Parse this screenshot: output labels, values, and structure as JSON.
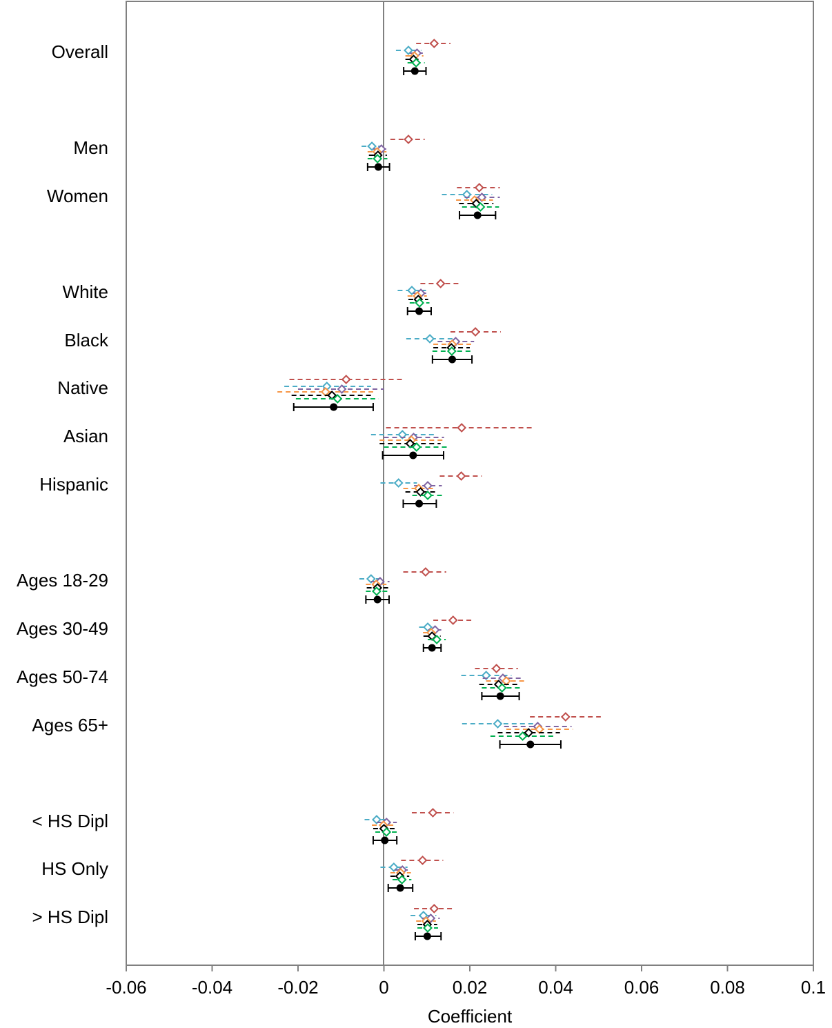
{
  "chart_data": {
    "type": "forest",
    "xlabel": "Coefficient",
    "xlim": [
      -0.06,
      0.1
    ],
    "xticks": [
      -0.06,
      -0.04,
      -0.02,
      0,
      0.02,
      0.04,
      0.06,
      0.08,
      0.1
    ],
    "xtick_labels": [
      "-0.06",
      "-0.04",
      "-0.02",
      "0",
      "0.02",
      "0.04",
      "0.06",
      "0.08",
      "0.1"
    ],
    "reference_line": 0,
    "categories": [
      "Overall",
      "Men",
      "Women",
      "White",
      "Black",
      "Native",
      "Asian",
      "Hispanic",
      "Ages 18-29",
      "Ages 30-49",
      "Ages 50-74",
      "Ages 65+",
      "< HS Dipl",
      "HS Only",
      "> HS Dipl"
    ],
    "series": [
      {
        "color": "#c0504d",
        "marker": "diamond-open",
        "ci_style": "dashed",
        "values": [
          0.0117,
          0.0057,
          0.0222,
          0.0132,
          0.0213,
          -0.0088,
          0.0181,
          0.018,
          0.0097,
          0.0161,
          0.0262,
          0.0423,
          0.0114,
          0.009,
          0.0117
        ],
        "lower": [
          0.0075,
          0.0015,
          0.017,
          0.0085,
          0.0155,
          -0.022,
          0.0005,
          0.013,
          0.0045,
          0.0115,
          0.0212,
          0.034,
          0.0065,
          0.004,
          0.007
        ],
        "upper": [
          0.0155,
          0.0095,
          0.027,
          0.0178,
          0.0272,
          0.0045,
          0.0348,
          0.0228,
          0.0145,
          0.0205,
          0.0312,
          0.0505,
          0.0162,
          0.0138,
          0.0163
        ]
      },
      {
        "color": "#4bacc6",
        "marker": "diamond-open",
        "ci_style": "dashed",
        "values": [
          0.0057,
          -0.0028,
          0.0193,
          0.0065,
          0.0107,
          -0.0133,
          0.0043,
          0.0034,
          -0.003,
          0.0102,
          0.0238,
          0.0265,
          -0.0017,
          0.0023,
          0.0092
        ],
        "lower": [
          0.0028,
          -0.0052,
          0.0135,
          0.0032,
          0.0052,
          -0.0232,
          -0.003,
          -0.0008,
          -0.0057,
          0.0082,
          0.018,
          0.0182,
          -0.0045,
          -0.0008,
          0.0062
        ],
        "upper": [
          0.0087,
          -0.0003,
          0.0252,
          0.0098,
          0.0162,
          -0.003,
          0.0117,
          0.0077,
          -0.0002,
          0.0122,
          0.0297,
          0.0348,
          0.0012,
          0.0055,
          0.0122
        ]
      },
      {
        "color": "#8064a2",
        "marker": "diamond-open",
        "ci_style": "dashed",
        "values": [
          0.0077,
          -0.0006,
          0.0228,
          0.0086,
          0.0167,
          -0.0098,
          0.0069,
          0.0102,
          -0.0009,
          0.0119,
          0.0277,
          0.0358,
          0.0006,
          0.0043,
          0.0109
        ],
        "lower": [
          0.006,
          -0.0025,
          0.0188,
          0.0068,
          0.0125,
          -0.02,
          0.0,
          0.007,
          -0.003,
          0.0103,
          0.023,
          0.028,
          -0.0017,
          0.0025,
          0.0088
        ],
        "upper": [
          0.0095,
          0.0012,
          0.027,
          0.0105,
          0.021,
          0.0,
          0.014,
          0.0135,
          0.0013,
          0.0137,
          0.0325,
          0.0437,
          0.003,
          0.0062,
          0.013
        ]
      },
      {
        "color": "#f79646",
        "marker": "diamond-open",
        "ci_style": "dashed",
        "values": [
          0.0071,
          -0.0016,
          0.0211,
          0.0078,
          0.0159,
          -0.0136,
          0.0064,
          0.0081,
          -0.0018,
          0.011,
          0.0285,
          0.0362,
          -0.0001,
          0.0039,
          0.0098
        ],
        "lower": [
          0.005,
          -0.0038,
          0.0168,
          0.0055,
          0.0115,
          -0.0248,
          -0.001,
          0.0045,
          -0.0042,
          0.0091,
          0.0238,
          0.0285,
          -0.0028,
          0.0015,
          0.0075
        ],
        "upper": [
          0.0092,
          0.0006,
          0.0254,
          0.01,
          0.0203,
          -0.0025,
          0.0138,
          0.0117,
          0.0006,
          0.0129,
          0.0332,
          0.044,
          0.0026,
          0.0063,
          0.0121
        ]
      },
      {
        "color": "#000000",
        "marker": "diamond-open",
        "ci_style": "dashed",
        "values": [
          0.0069,
          -0.0014,
          0.0215,
          0.008,
          0.0157,
          -0.0121,
          0.0061,
          0.0085,
          -0.0015,
          0.0112,
          0.0267,
          0.0337,
          0.0,
          0.0037,
          0.0101
        ],
        "lower": [
          0.005,
          -0.0035,
          0.0175,
          0.0057,
          0.0115,
          -0.0215,
          -0.001,
          0.005,
          -0.004,
          0.0092,
          0.0222,
          0.0265,
          -0.0025,
          0.0015,
          0.0078
        ],
        "upper": [
          0.0088,
          0.0007,
          0.0255,
          0.0103,
          0.02,
          -0.0028,
          0.0132,
          0.012,
          0.001,
          0.0132,
          0.0312,
          0.041,
          0.0025,
          0.0059,
          0.0124
        ]
      },
      {
        "color": "#00b050",
        "marker": "diamond-open",
        "ci_style": "dashed",
        "values": [
          0.0075,
          -0.0015,
          0.0225,
          0.0083,
          0.0158,
          -0.0108,
          0.0076,
          0.0102,
          -0.0017,
          0.0123,
          0.0275,
          0.0323,
          0.0006,
          0.0042,
          0.0102
        ],
        "lower": [
          0.0055,
          -0.0038,
          0.0182,
          0.006,
          0.0113,
          -0.0205,
          0.0,
          0.0066,
          -0.0042,
          0.0102,
          0.0228,
          0.0248,
          -0.002,
          0.002,
          0.0078
        ],
        "upper": [
          0.0095,
          0.0008,
          0.0268,
          0.0106,
          0.0203,
          -0.0012,
          0.0148,
          0.0138,
          0.0008,
          0.0144,
          0.0322,
          0.0398,
          0.0032,
          0.0064,
          0.0126
        ]
      },
      {
        "color": "#000000",
        "marker": "filled-circle",
        "ci_style": "solid-capped",
        "values": [
          0.0072,
          -0.0013,
          0.0218,
          0.0082,
          0.0159,
          -0.0117,
          0.0068,
          0.0082,
          -0.0015,
          0.0112,
          0.0271,
          0.0341,
          0.0002,
          0.0038,
          0.0101
        ],
        "lower": [
          0.0046,
          -0.0038,
          0.0176,
          0.0055,
          0.0113,
          -0.021,
          -0.0003,
          0.0045,
          -0.0042,
          0.0092,
          0.0228,
          0.027,
          -0.0025,
          0.001,
          0.0073
        ],
        "upper": [
          0.0098,
          0.0013,
          0.026,
          0.011,
          0.0205,
          -0.0025,
          0.0139,
          0.0122,
          0.0012,
          0.0133,
          0.0315,
          0.0412,
          0.003,
          0.0067,
          0.0133
        ]
      }
    ]
  }
}
